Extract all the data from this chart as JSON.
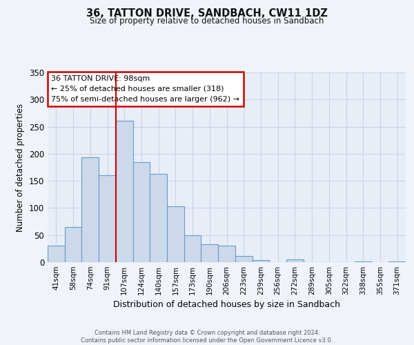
{
  "title": "36, TATTON DRIVE, SANDBACH, CW11 1DZ",
  "subtitle": "Size of property relative to detached houses in Sandbach",
  "xlabel": "Distribution of detached houses by size in Sandbach",
  "ylabel": "Number of detached properties",
  "bin_labels": [
    "41sqm",
    "58sqm",
    "74sqm",
    "91sqm",
    "107sqm",
    "124sqm",
    "140sqm",
    "157sqm",
    "173sqm",
    "190sqm",
    "206sqm",
    "223sqm",
    "239sqm",
    "256sqm",
    "272sqm",
    "289sqm",
    "305sqm",
    "322sqm",
    "338sqm",
    "355sqm",
    "371sqm"
  ],
  "bin_values": [
    30,
    65,
    193,
    160,
    261,
    184,
    163,
    103,
    50,
    33,
    30,
    11,
    4,
    0,
    5,
    0,
    0,
    0,
    1,
    0,
    1
  ],
  "bar_color": "#ccd9ea",
  "bar_edge_color": "#6699cc",
  "vline_x": 3.5,
  "vline_color": "#cc0000",
  "annotation_text": "36 TATTON DRIVE: 98sqm\n← 25% of detached houses are smaller (318)\n75% of semi-detached houses are larger (962) →",
  "annotation_box_color": "#ffffff",
  "annotation_box_edge": "#cc0000",
  "ylim": [
    0,
    350
  ],
  "yticks": [
    0,
    50,
    100,
    150,
    200,
    250,
    300,
    350
  ],
  "footer_text": "Contains HM Land Registry data © Crown copyright and database right 2024.\nContains public sector information licensed under the Open Government Licence v3.0.",
  "bg_color": "#f0f4fa",
  "plot_bg_color": "#e8eef8",
  "grid_color": "#c8d4e4"
}
